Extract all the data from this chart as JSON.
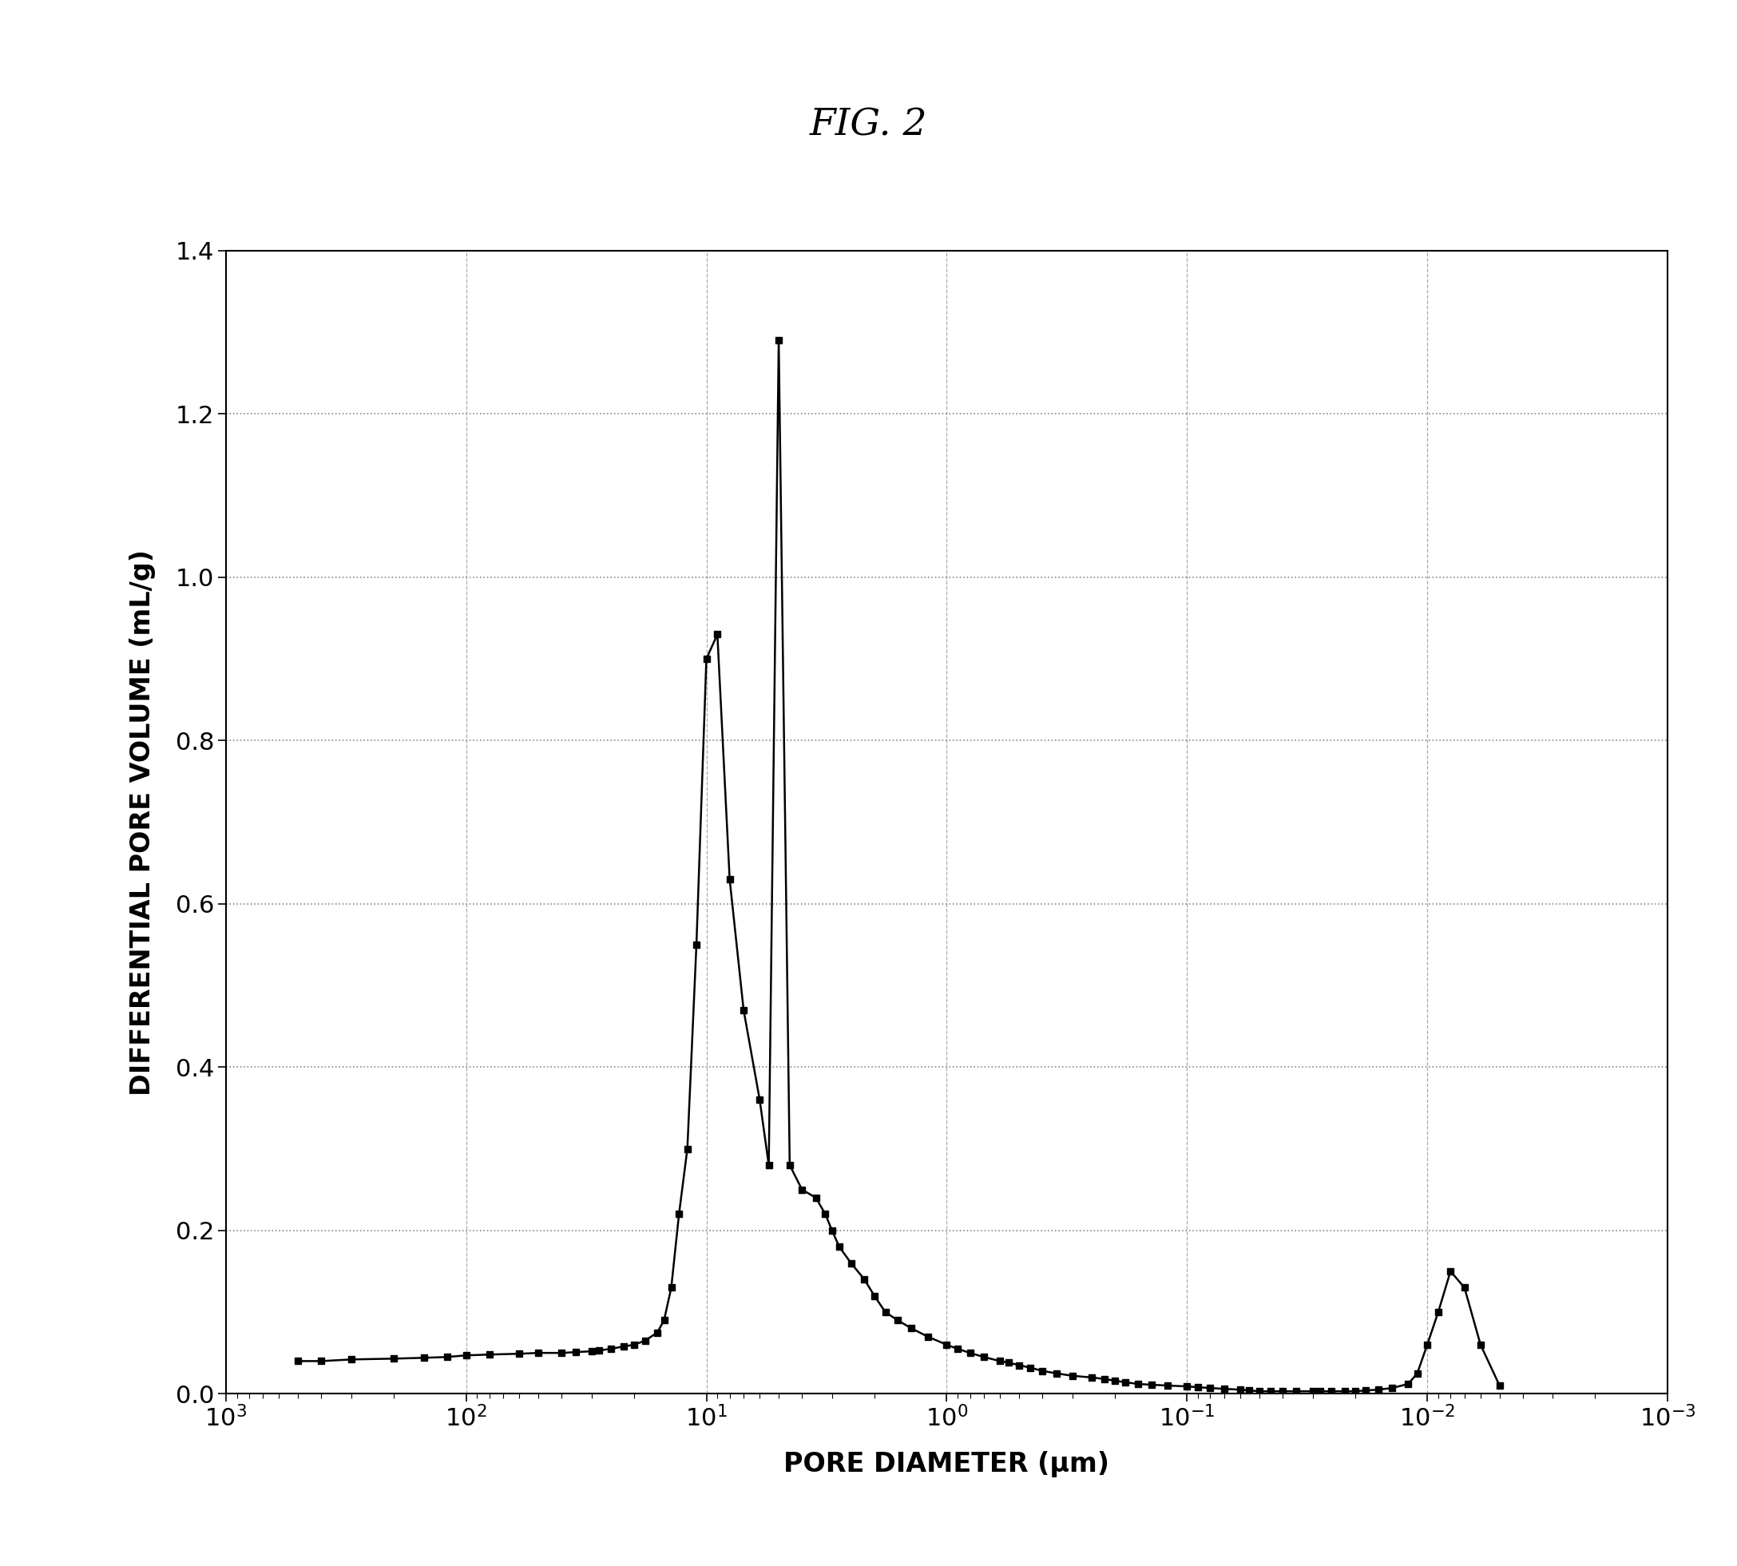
{
  "title": "FIG. 2",
  "xlabel": "PORE DIAMETER (μm)",
  "ylabel": "DIFFERENTIAL PORE VOLUME (mL/g)",
  "ylim": [
    0,
    1.4
  ],
  "background_color": "#ffffff",
  "line_color": "#000000",
  "marker": "s",
  "marker_size": 6,
  "title_fontsize": 34,
  "label_fontsize": 24,
  "tick_fontsize": 22,
  "data_x": [
    500,
    400,
    300,
    200,
    150,
    120,
    100,
    80,
    60,
    50,
    40,
    35,
    30,
    28,
    25,
    22,
    20,
    18,
    16,
    15,
    14,
    13,
    12,
    11,
    10,
    9,
    8,
    7,
    6,
    5.5,
    5.0,
    4.5,
    4.0,
    3.5,
    3.2,
    3.0,
    2.8,
    2.5,
    2.2,
    2.0,
    1.8,
    1.6,
    1.4,
    1.2,
    1.0,
    0.9,
    0.8,
    0.7,
    0.6,
    0.55,
    0.5,
    0.45,
    0.4,
    0.35,
    0.3,
    0.25,
    0.22,
    0.2,
    0.18,
    0.16,
    0.14,
    0.12,
    0.1,
    0.09,
    0.08,
    0.07,
    0.06,
    0.055,
    0.05,
    0.045,
    0.04,
    0.035,
    0.03,
    0.028,
    0.025,
    0.022,
    0.02,
    0.018,
    0.016,
    0.014,
    0.012,
    0.011,
    0.01,
    0.009,
    0.008,
    0.007,
    0.006,
    0.005
  ],
  "data_y": [
    0.04,
    0.04,
    0.042,
    0.043,
    0.044,
    0.045,
    0.047,
    0.048,
    0.049,
    0.05,
    0.05,
    0.051,
    0.052,
    0.053,
    0.055,
    0.058,
    0.06,
    0.065,
    0.075,
    0.09,
    0.13,
    0.22,
    0.3,
    0.55,
    0.9,
    0.93,
    0.63,
    0.47,
    0.36,
    0.28,
    1.29,
    0.28,
    0.25,
    0.24,
    0.22,
    0.2,
    0.18,
    0.16,
    0.14,
    0.12,
    0.1,
    0.09,
    0.08,
    0.07,
    0.06,
    0.055,
    0.05,
    0.045,
    0.04,
    0.038,
    0.035,
    0.032,
    0.028,
    0.025,
    0.022,
    0.02,
    0.018,
    0.016,
    0.014,
    0.012,
    0.011,
    0.01,
    0.009,
    0.008,
    0.007,
    0.006,
    0.005,
    0.004,
    0.003,
    0.003,
    0.003,
    0.003,
    0.003,
    0.003,
    0.003,
    0.003,
    0.003,
    0.004,
    0.005,
    0.007,
    0.012,
    0.025,
    0.06,
    0.1,
    0.15,
    0.13,
    0.06,
    0.01
  ]
}
